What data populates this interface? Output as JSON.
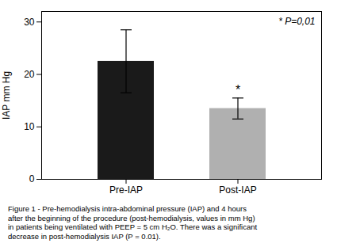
{
  "chart_data": {
    "type": "bar",
    "categories": [
      "Pre-IAP",
      "Post-IAP"
    ],
    "values": [
      22.5,
      13.5
    ],
    "errors": [
      6.0,
      2.0
    ],
    "colors": [
      "#1a1a1a",
      "#b0b0b0"
    ],
    "ylabel": "IAP mm Hg",
    "ylim": [
      0,
      32
    ],
    "yticks": [
      0,
      10,
      20,
      30
    ],
    "grid": false,
    "annotations": [
      {
        "text": "* P=0,01"
      },
      {
        "text": "*",
        "category": "Post-IAP"
      }
    ],
    "caption": "Figure 1 - Pre-hemodialysis intra-abdominal pressure (IAP) and 4 hours\nafter the beginning of the procedure (post-hemodialysis, values in mm Hg)\nin patients being ventilated with PEEP = 5 cm H₂O. There was a significant\ndecrease in post-hemodialysis IAP (P = 0.01)."
  }
}
